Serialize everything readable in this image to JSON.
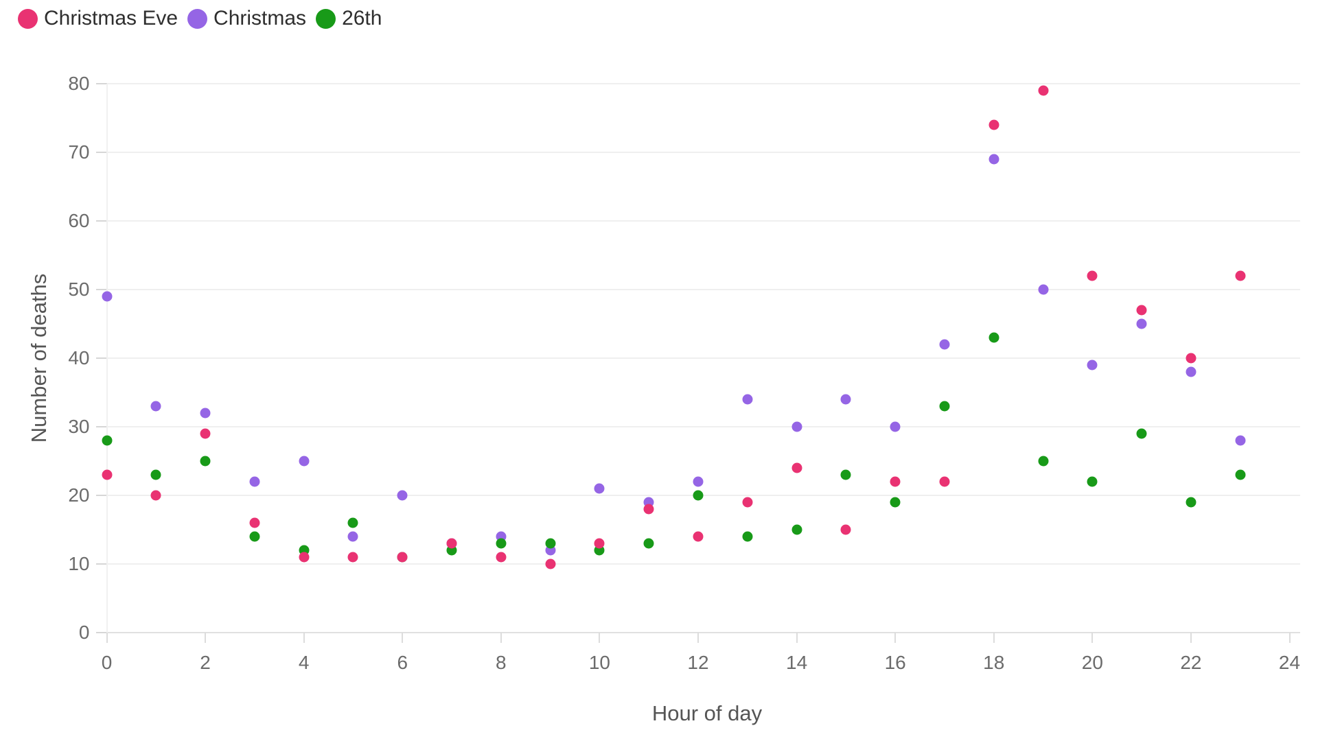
{
  "legend": [
    {
      "label": "Christmas Eve",
      "color": "#e93272"
    },
    {
      "label": "Christmas",
      "color": "#9565e5"
    },
    {
      "label": "26th",
      "color": "#189a18"
    }
  ],
  "chart_data": {
    "type": "scatter",
    "title": "",
    "xlabel": "Hour of day",
    "ylabel": "Number of deaths",
    "x": [
      0,
      1,
      2,
      3,
      4,
      5,
      6,
      7,
      8,
      9,
      10,
      11,
      12,
      13,
      14,
      15,
      16,
      17,
      18,
      19,
      20,
      21,
      22,
      23
    ],
    "series": [
      {
        "name": "Christmas Eve",
        "color": "#e93272",
        "values": [
          23,
          20,
          29,
          16,
          11,
          11,
          11,
          13,
          11,
          10,
          13,
          18,
          14,
          19,
          24,
          15,
          22,
          22,
          74,
          79,
          52,
          47,
          40,
          52
        ]
      },
      {
        "name": "Christmas",
        "color": "#9565e5",
        "values": [
          49,
          33,
          32,
          22,
          25,
          14,
          20,
          13,
          14,
          12,
          21,
          19,
          22,
          34,
          30,
          34,
          30,
          42,
          69,
          50,
          39,
          45,
          38,
          28
        ]
      },
      {
        "name": "26th",
        "color": "#189a18",
        "values": [
          28,
          23,
          25,
          14,
          12,
          16,
          11,
          12,
          13,
          13,
          12,
          13,
          20,
          14,
          15,
          23,
          19,
          33,
          43,
          25,
          22,
          29,
          19,
          23
        ]
      }
    ],
    "xlim": [
      0,
      24
    ],
    "ylim": [
      0,
      80
    ],
    "x_ticks": [
      0,
      2,
      4,
      6,
      8,
      10,
      12,
      14,
      16,
      18,
      20,
      22,
      24
    ],
    "y_ticks": [
      0,
      10,
      20,
      30,
      40,
      50,
      60,
      70,
      80
    ],
    "grid": "horizontal",
    "legend_position": "top-left"
  }
}
